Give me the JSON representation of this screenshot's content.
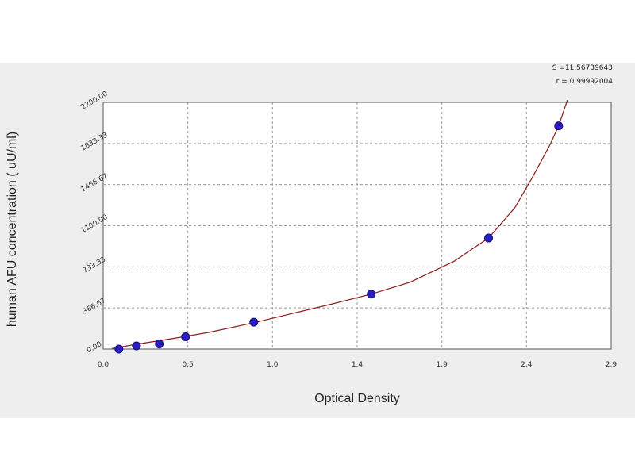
{
  "chart_data": {
    "type": "scatter",
    "xlabel": "Optical Density",
    "ylabel": "human AFU concentration ( uU/ml)",
    "xlim": [
      0.0,
      2.9
    ],
    "ylim": [
      0.0,
      2200.0
    ],
    "x_ticks": [
      "0.0",
      "0.5",
      "1.0",
      "1.4",
      "1.9",
      "2.4",
      "2.9"
    ],
    "y_ticks": [
      "0.00",
      "366.67",
      "733.33",
      "1100.00",
      "1466.67",
      "1833.33",
      "2200.00"
    ],
    "grid": true,
    "points": [
      {
        "x": 0.09,
        "y": 0
      },
      {
        "x": 0.19,
        "y": 28
      },
      {
        "x": 0.32,
        "y": 45
      },
      {
        "x": 0.47,
        "y": 110
      },
      {
        "x": 0.86,
        "y": 240
      },
      {
        "x": 1.53,
        "y": 490
      },
      {
        "x": 2.2,
        "y": 990
      },
      {
        "x": 2.6,
        "y": 1990
      }
    ],
    "fit_curve": [
      {
        "x": 0.05,
        "y": 5
      },
      {
        "x": 0.2,
        "y": 45
      },
      {
        "x": 0.4,
        "y": 95
      },
      {
        "x": 0.6,
        "y": 148
      },
      {
        "x": 0.86,
        "y": 235
      },
      {
        "x": 1.1,
        "y": 325
      },
      {
        "x": 1.3,
        "y": 400
      },
      {
        "x": 1.53,
        "y": 490
      },
      {
        "x": 1.75,
        "y": 595
      },
      {
        "x": 2.0,
        "y": 780
      },
      {
        "x": 2.2,
        "y": 990
      },
      {
        "x": 2.35,
        "y": 1260
      },
      {
        "x": 2.45,
        "y": 1530
      },
      {
        "x": 2.55,
        "y": 1820
      },
      {
        "x": 2.6,
        "y": 1990
      },
      {
        "x": 2.65,
        "y": 2220
      }
    ],
    "stats": [
      "S =11.56739643",
      "r = 0.99992004"
    ],
    "colors": {
      "curve": "#8b1a1a",
      "points": "#2a1dbf",
      "background": "#eeeeee",
      "plot_area": "#ffffff"
    }
  }
}
